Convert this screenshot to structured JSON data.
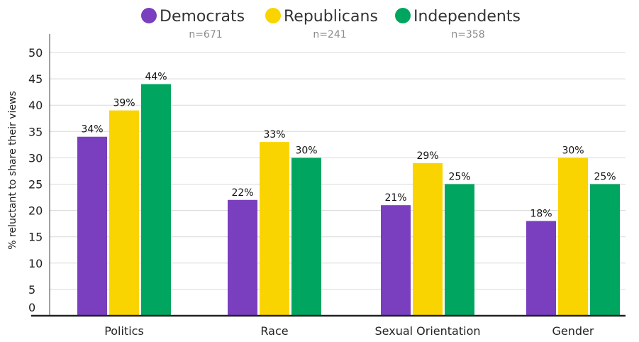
{
  "chart_data": {
    "type": "bar",
    "categories": [
      "Politics",
      "Race",
      "Sexual Orientation",
      "Gender"
    ],
    "series": [
      {
        "name": "Democrats",
        "n_label": "n=671",
        "color": "#7a3fbf",
        "values": [
          34,
          22,
          21,
          18
        ],
        "labels": [
          "34%",
          "22%",
          "21%",
          "18%"
        ]
      },
      {
        "name": "Republicans",
        "n_label": "n=241",
        "color": "#fad400",
        "values": [
          39,
          33,
          29,
          30
        ],
        "labels": [
          "39%",
          "33%",
          "29%",
          "30%"
        ]
      },
      {
        "name": "Independents",
        "n_label": "n=358",
        "color": "#00a65f",
        "values": [
          44,
          30,
          25,
          25
        ],
        "labels": [
          "44%",
          "30%",
          "25%",
          "25%"
        ]
      }
    ],
    "ylabel": "% reluctant to share their views",
    "ylim": [
      0,
      50
    ],
    "yticks": [
      0,
      5,
      10,
      15,
      20,
      25,
      30,
      35,
      40,
      45,
      50
    ],
    "grid": true,
    "legend_position": "top-center"
  }
}
